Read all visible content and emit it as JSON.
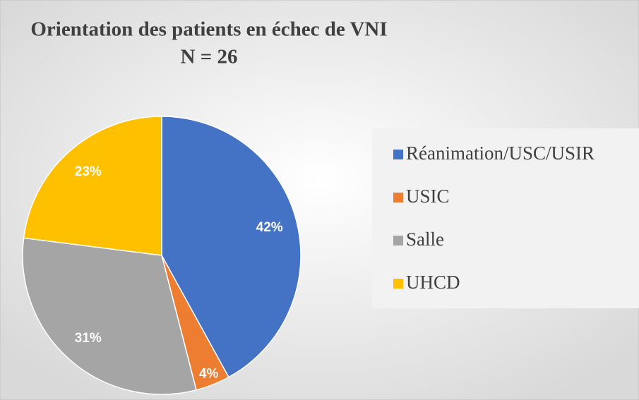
{
  "chart_data": {
    "type": "pie",
    "title": "Orientation des patients en échec de VNI",
    "subtitle": "N = 26",
    "categories": [
      "Réanimation/USC/USIR",
      "USIC",
      "Salle",
      "UHCD"
    ],
    "values": [
      42,
      4,
      31,
      23
    ],
    "value_labels": [
      "42%",
      "4%",
      "31%",
      "23%"
    ],
    "colors": [
      "#4472c4",
      "#ed7d31",
      "#a5a5a5",
      "#ffc000"
    ],
    "legend": "right"
  }
}
